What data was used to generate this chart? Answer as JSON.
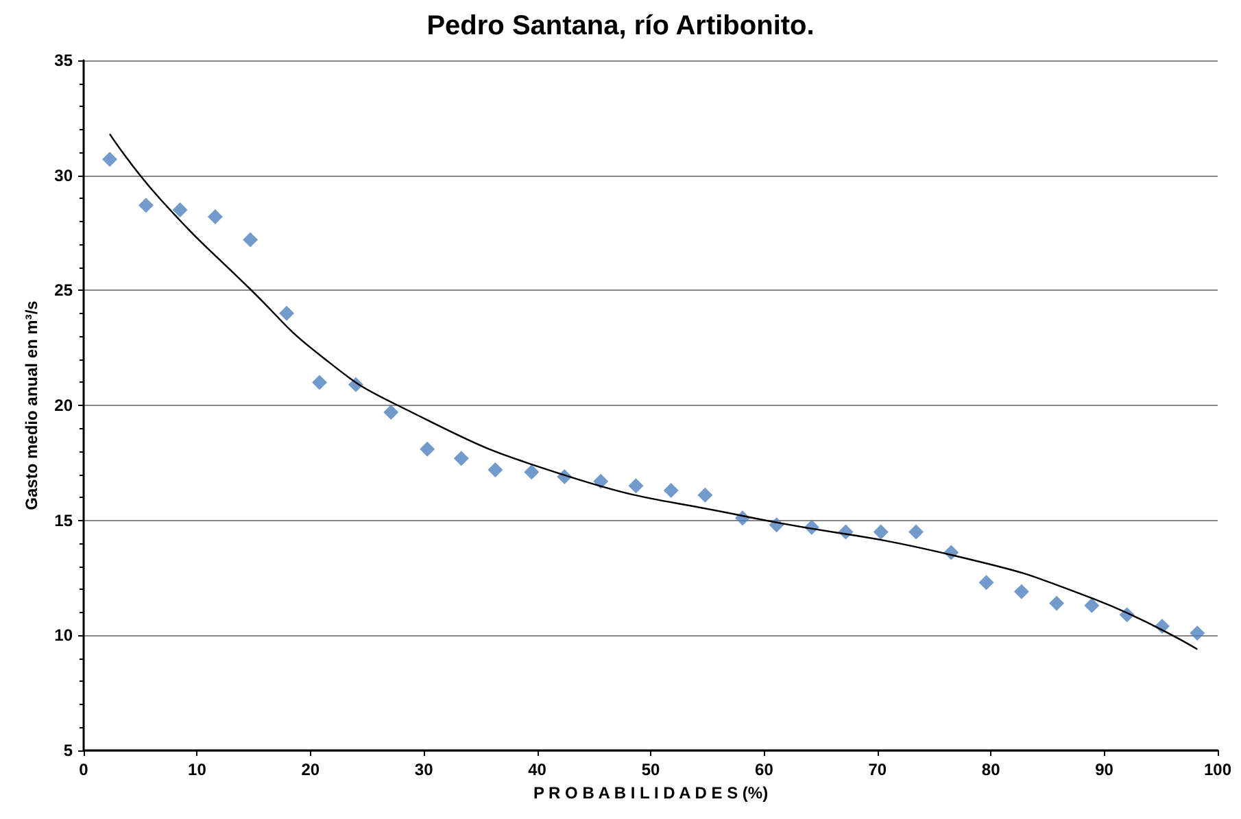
{
  "chart_data": {
    "type": "scatter",
    "title": "Pedro Santana, río Artibonito.",
    "xlabel": "P R O B A B I L I D A D E S (%)",
    "ylabel": "Gasto medio anual en m³/s",
    "xlim": [
      0,
      100
    ],
    "xticks": [
      0,
      10,
      20,
      30,
      40,
      50,
      60,
      70,
      80,
      90,
      100
    ],
    "ylim": [
      5,
      35
    ],
    "yticks": [
      5,
      10,
      15,
      20,
      25,
      30,
      35
    ],
    "grid": "y",
    "marker": "diamond",
    "series": [
      {
        "color": "#4f81bd",
        "x": [
          2.3,
          5.5,
          8.5,
          11.6,
          14.7,
          17.9,
          20.8,
          24.0,
          27.1,
          30.3,
          33.3,
          36.3,
          39.5,
          42.4,
          45.6,
          48.7,
          51.8,
          54.8,
          58.1,
          61.1,
          64.2,
          67.2,
          70.3,
          73.4,
          76.5,
          79.6,
          82.7,
          85.8,
          88.9,
          92.0,
          95.1,
          98.2
        ],
        "values": [
          30.7,
          28.7,
          28.5,
          28.2,
          27.2,
          24.0,
          21.0,
          20.9,
          19.7,
          18.1,
          17.7,
          17.2,
          17.1,
          16.9,
          16.7,
          16.5,
          16.3,
          16.1,
          15.1,
          14.8,
          14.7,
          14.5,
          14.5,
          14.5,
          13.6,
          12.3,
          11.9,
          11.4,
          11.3,
          10.9,
          10.4,
          10.1
        ]
      },
      {
        "type": "line",
        "color": "#000000",
        "marker": "none",
        "line_style": "solid",
        "x": [
          2.3,
          6.7,
          14.8,
          20.8,
          27.7,
          42.2,
          58.1,
          76.5,
          89.0,
          98.2
        ],
        "values": [
          31.8,
          29.0,
          25.0,
          22.2,
          20.0,
          17.0,
          15.2,
          13.5,
          11.6,
          9.4
        ]
      }
    ]
  }
}
